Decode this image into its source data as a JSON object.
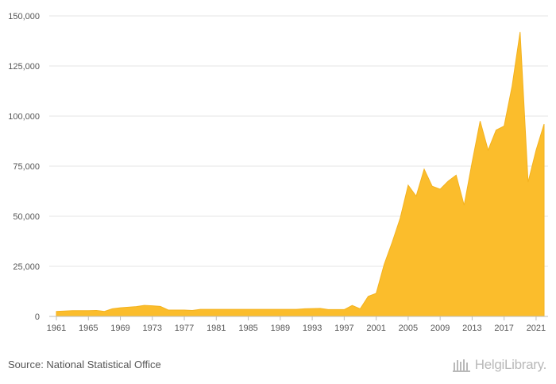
{
  "chart_data": {
    "type": "area",
    "x": [
      1961,
      1962,
      1963,
      1964,
      1965,
      1966,
      1967,
      1968,
      1969,
      1970,
      1971,
      1972,
      1973,
      1974,
      1975,
      1976,
      1977,
      1978,
      1979,
      1980,
      1981,
      1982,
      1983,
      1984,
      1985,
      1986,
      1987,
      1988,
      1989,
      1990,
      1991,
      1992,
      1993,
      1994,
      1995,
      1996,
      1997,
      1998,
      1999,
      2000,
      2001,
      2002,
      2003,
      2004,
      2005,
      2006,
      2007,
      2008,
      2009,
      2010,
      2011,
      2012,
      2013,
      2014,
      2015,
      2016,
      2017,
      2018,
      2019,
      2020,
      2021,
      2022
    ],
    "series": [
      {
        "values": [
          2500,
          2700,
          2900,
          2900,
          2900,
          3000,
          2500,
          3800,
          4300,
          4600,
          4900,
          5500,
          5300,
          5000,
          3200,
          3200,
          3200,
          3000,
          3500,
          3500,
          3500,
          3500,
          3500,
          3500,
          3500,
          3500,
          3500,
          3500,
          3500,
          3500,
          3500,
          3800,
          3900,
          4000,
          3400,
          3400,
          3400,
          5500,
          3800,
          10000,
          11500,
          26000,
          37000,
          49000,
          65500,
          60000,
          73500,
          65000,
          63500,
          67500,
          70500,
          55500,
          77000,
          97500,
          83000,
          93000,
          95000,
          115000,
          142000,
          67000,
          83000,
          96000
        ],
        "color": "#fbbd2c"
      }
    ],
    "xticks": [
      "1961",
      "1965",
      "1969",
      "1973",
      "1977",
      "1981",
      "1985",
      "1989",
      "1993",
      "1997",
      "2001",
      "2005",
      "2009",
      "2013",
      "2017",
      "2021"
    ],
    "yticks": [
      "0",
      "25,000",
      "50,000",
      "75,000",
      "100,000",
      "125,000",
      "150,000"
    ],
    "ylim": [
      0,
      150000
    ],
    "xlim": [
      1961,
      2022
    ],
    "grid": true,
    "legend": "none"
  },
  "footer": {
    "source": "Source: National Statistical Office",
    "brand": "HelgiLibrary."
  }
}
